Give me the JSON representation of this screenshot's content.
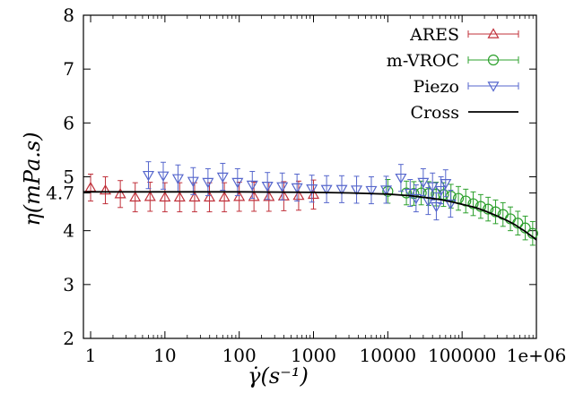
{
  "chart_data": {
    "type": "scatter",
    "xscale": "log",
    "xlim": [
      0.8,
      1000000
    ],
    "ylim": [
      2,
      8
    ],
    "xlabel": "γ̇(s⁻¹)",
    "ylabel": "η(mPa.s)",
    "x_ticks": [
      {
        "value": 1,
        "label": "1"
      },
      {
        "value": 10,
        "label": "10"
      },
      {
        "value": 100,
        "label": "100"
      },
      {
        "value": 1000,
        "label": "1000"
      },
      {
        "value": 10000,
        "label": "10000"
      },
      {
        "value": 100000,
        "label": "100000"
      },
      {
        "value": 1000000,
        "label": "1e+06"
      }
    ],
    "y_ticks": [
      {
        "value": 2,
        "label": "2"
      },
      {
        "value": 3,
        "label": "3"
      },
      {
        "value": 4,
        "label": "4"
      },
      {
        "value": 4.7,
        "label": "4.7"
      },
      {
        "value": 5,
        "label": "5"
      },
      {
        "value": 6,
        "label": "6"
      },
      {
        "value": 7,
        "label": "7"
      },
      {
        "value": 8,
        "label": "8"
      }
    ],
    "legend_position": "top-right",
    "series": [
      {
        "name": "ARES",
        "marker": "triangle-up",
        "color": "#c0303a",
        "points": [
          {
            "x": 1,
            "y": 4.8,
            "err": 0.25
          },
          {
            "x": 1.58,
            "y": 4.75,
            "err": 0.25
          },
          {
            "x": 2.51,
            "y": 4.68,
            "err": 0.25
          },
          {
            "x": 3.98,
            "y": 4.62,
            "err": 0.27
          },
          {
            "x": 6.31,
            "y": 4.63,
            "err": 0.27
          },
          {
            "x": 10,
            "y": 4.62,
            "err": 0.27
          },
          {
            "x": 15.8,
            "y": 4.62,
            "err": 0.27
          },
          {
            "x": 25.1,
            "y": 4.62,
            "err": 0.27
          },
          {
            "x": 39.8,
            "y": 4.62,
            "err": 0.27
          },
          {
            "x": 63.1,
            "y": 4.62,
            "err": 0.27
          },
          {
            "x": 100,
            "y": 4.63,
            "err": 0.27
          },
          {
            "x": 158,
            "y": 4.63,
            "err": 0.27
          },
          {
            "x": 251,
            "y": 4.63,
            "err": 0.27
          },
          {
            "x": 398,
            "y": 4.64,
            "err": 0.27
          },
          {
            "x": 631,
            "y": 4.65,
            "err": 0.27
          },
          {
            "x": 1000,
            "y": 4.67,
            "err": 0.27
          }
        ]
      },
      {
        "name": "m-VROC",
        "marker": "circle",
        "color": "#2ca02c",
        "points": [
          {
            "x": 10000,
            "y": 4.73,
            "err": 0.22
          },
          {
            "x": 17800,
            "y": 4.7,
            "err": 0.22
          },
          {
            "x": 22400,
            "y": 4.69,
            "err": 0.22
          },
          {
            "x": 28200,
            "y": 4.7,
            "err": 0.22
          },
          {
            "x": 35500,
            "y": 4.69,
            "err": 0.22
          },
          {
            "x": 44700,
            "y": 4.68,
            "err": 0.22
          },
          {
            "x": 56200,
            "y": 4.67,
            "err": 0.22
          },
          {
            "x": 70800,
            "y": 4.64,
            "err": 0.22
          },
          {
            "x": 89100,
            "y": 4.6,
            "err": 0.22
          },
          {
            "x": 112000,
            "y": 4.55,
            "err": 0.22
          },
          {
            "x": 141000,
            "y": 4.5,
            "err": 0.22
          },
          {
            "x": 178000,
            "y": 4.45,
            "err": 0.22
          },
          {
            "x": 224000,
            "y": 4.4,
            "err": 0.22
          },
          {
            "x": 282000,
            "y": 4.35,
            "err": 0.22
          },
          {
            "x": 355000,
            "y": 4.3,
            "err": 0.22
          },
          {
            "x": 447000,
            "y": 4.22,
            "err": 0.22
          },
          {
            "x": 562000,
            "y": 4.14,
            "err": 0.22
          },
          {
            "x": 708000,
            "y": 4.05,
            "err": 0.22
          },
          {
            "x": 891000,
            "y": 3.95,
            "err": 0.22
          }
        ]
      },
      {
        "name": "Piezo",
        "marker": "triangle-down",
        "color": "#5566cc",
        "points": [
          {
            "x": 6,
            "y": 5.03,
            "err": 0.25
          },
          {
            "x": 9.5,
            "y": 5.02,
            "err": 0.25
          },
          {
            "x": 15,
            "y": 4.97,
            "err": 0.25
          },
          {
            "x": 24,
            "y": 4.92,
            "err": 0.25
          },
          {
            "x": 38,
            "y": 4.9,
            "err": 0.25
          },
          {
            "x": 60,
            "y": 5.0,
            "err": 0.25
          },
          {
            "x": 95,
            "y": 4.9,
            "err": 0.25
          },
          {
            "x": 150,
            "y": 4.85,
            "err": 0.25
          },
          {
            "x": 240,
            "y": 4.83,
            "err": 0.25
          },
          {
            "x": 380,
            "y": 4.82,
            "err": 0.25
          },
          {
            "x": 600,
            "y": 4.8,
            "err": 0.25
          },
          {
            "x": 950,
            "y": 4.78,
            "err": 0.25
          },
          {
            "x": 1500,
            "y": 4.77,
            "err": 0.25
          },
          {
            "x": 2400,
            "y": 4.77,
            "err": 0.25
          },
          {
            "x": 3800,
            "y": 4.76,
            "err": 0.25
          },
          {
            "x": 6000,
            "y": 4.75,
            "err": 0.25
          },
          {
            "x": 9500,
            "y": 4.76,
            "err": 0.25
          },
          {
            "x": 15000,
            "y": 4.98,
            "err": 0.25
          },
          {
            "x": 20000,
            "y": 4.7,
            "err": 0.25
          },
          {
            "x": 24000,
            "y": 4.6,
            "err": 0.25
          },
          {
            "x": 30000,
            "y": 4.9,
            "err": 0.25
          },
          {
            "x": 35000,
            "y": 4.55,
            "err": 0.25
          },
          {
            "x": 40000,
            "y": 4.82,
            "err": 0.25
          },
          {
            "x": 45000,
            "y": 4.45,
            "err": 0.25
          },
          {
            "x": 52000,
            "y": 4.75,
            "err": 0.25
          },
          {
            "x": 60000,
            "y": 4.88,
            "err": 0.25
          },
          {
            "x": 70000,
            "y": 4.5,
            "err": 0.25
          }
        ]
      },
      {
        "name": "Cross",
        "type": "line",
        "color": "#000000",
        "x": [
          0.8,
          1,
          10,
          100,
          1000,
          3000,
          10000,
          20000,
          30000,
          50000,
          70000,
          100000,
          150000,
          200000,
          300000,
          400000,
          500000,
          600000,
          700000,
          800000,
          900000,
          1000000
        ],
        "y": [
          4.72,
          4.72,
          4.72,
          4.72,
          4.71,
          4.7,
          4.68,
          4.65,
          4.62,
          4.58,
          4.54,
          4.49,
          4.43,
          4.37,
          4.27,
          4.19,
          4.12,
          4.05,
          3.99,
          3.93,
          3.88,
          3.83
        ]
      }
    ]
  }
}
